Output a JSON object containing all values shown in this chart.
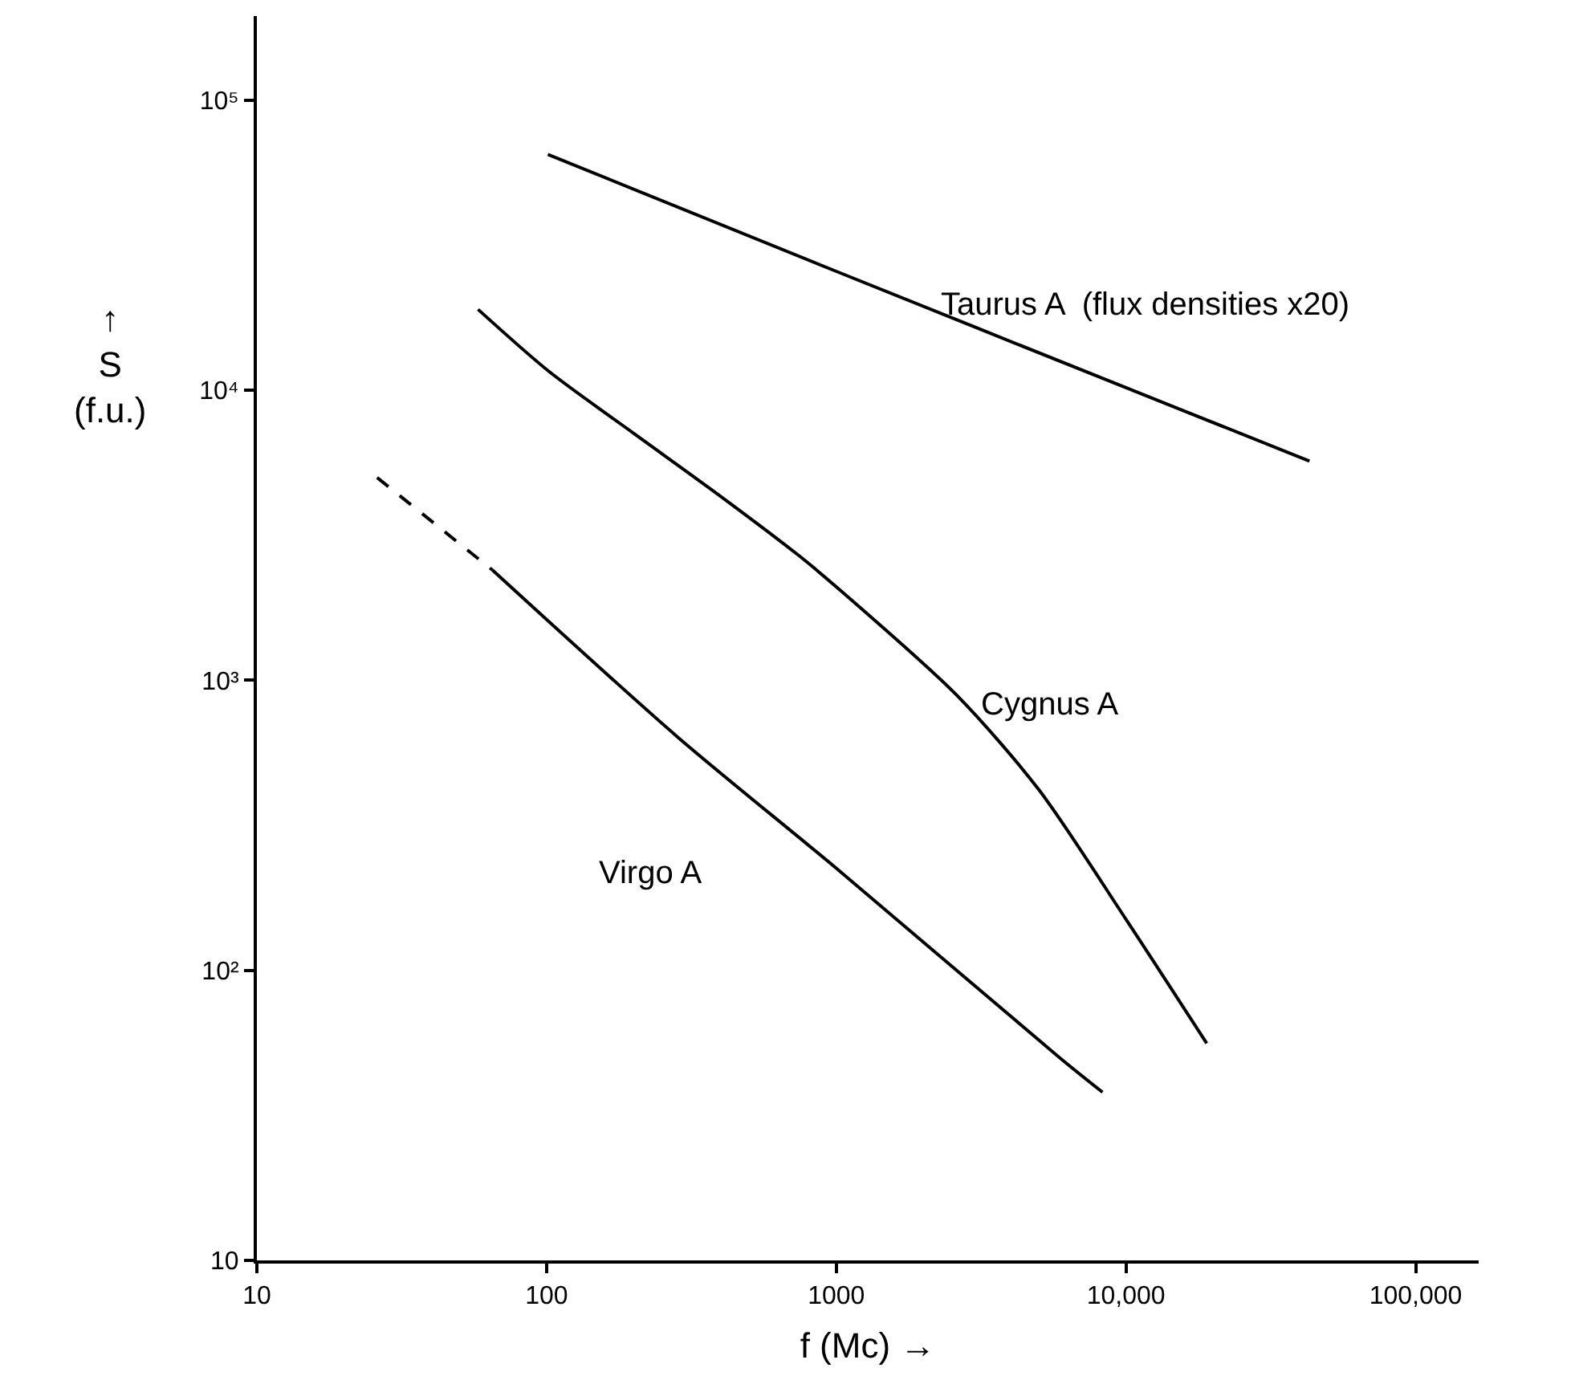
{
  "chart_data": {
    "type": "line",
    "xlabel": "f (Mc) →",
    "ylabel": "↑\nS\n(f.u.)",
    "log": "xy",
    "marker": "none",
    "xlim": [
      10,
      165000
    ],
    "ylim": [
      10,
      195000
    ],
    "xticks": [
      10,
      100,
      1000,
      {
        "value": 10000,
        "label": "10,000"
      },
      {
        "value": 100000,
        "label": "100,000"
      }
    ],
    "yticks": [
      10,
      {
        "value": 100,
        "label": "10²"
      },
      {
        "value": 1000,
        "label": "10³"
      },
      {
        "value": 10000,
        "label": "10⁴"
      },
      {
        "value": 100000,
        "label": "10⁵"
      }
    ],
    "series": [
      {
        "color": "#000000",
        "line_style": "solid",
        "x": [
          101,
          1000,
          10000,
          43000
        ],
        "values": [
          65000,
          25700,
          10200,
          5700
        ]
      },
      {
        "color": "#000000",
        "line_style": "solid",
        "x": [
          58,
          102,
          200,
          400,
          740,
          1000,
          2600,
          5000,
          10000,
          19000
        ],
        "values": [
          19000,
          11600,
          7100,
          4300,
          2700,
          2100,
          890,
          420,
          150,
          56
        ]
      },
      {
        "color": "#000000",
        "line_style": "dashed",
        "x": [
          26,
          65
        ],
        "values": [
          5000,
          2400
        ]
      },
      {
        "color": "#000000",
        "line_style": "solid",
        "x": [
          65,
          282,
          1000,
          5900,
          8300
        ],
        "values": [
          2400,
          640,
          225,
          50,
          38
        ]
      }
    ],
    "annotations": [
      "Taurus A  (flux densities x20)",
      "Cygnus A",
      "Virgo A"
    ]
  }
}
